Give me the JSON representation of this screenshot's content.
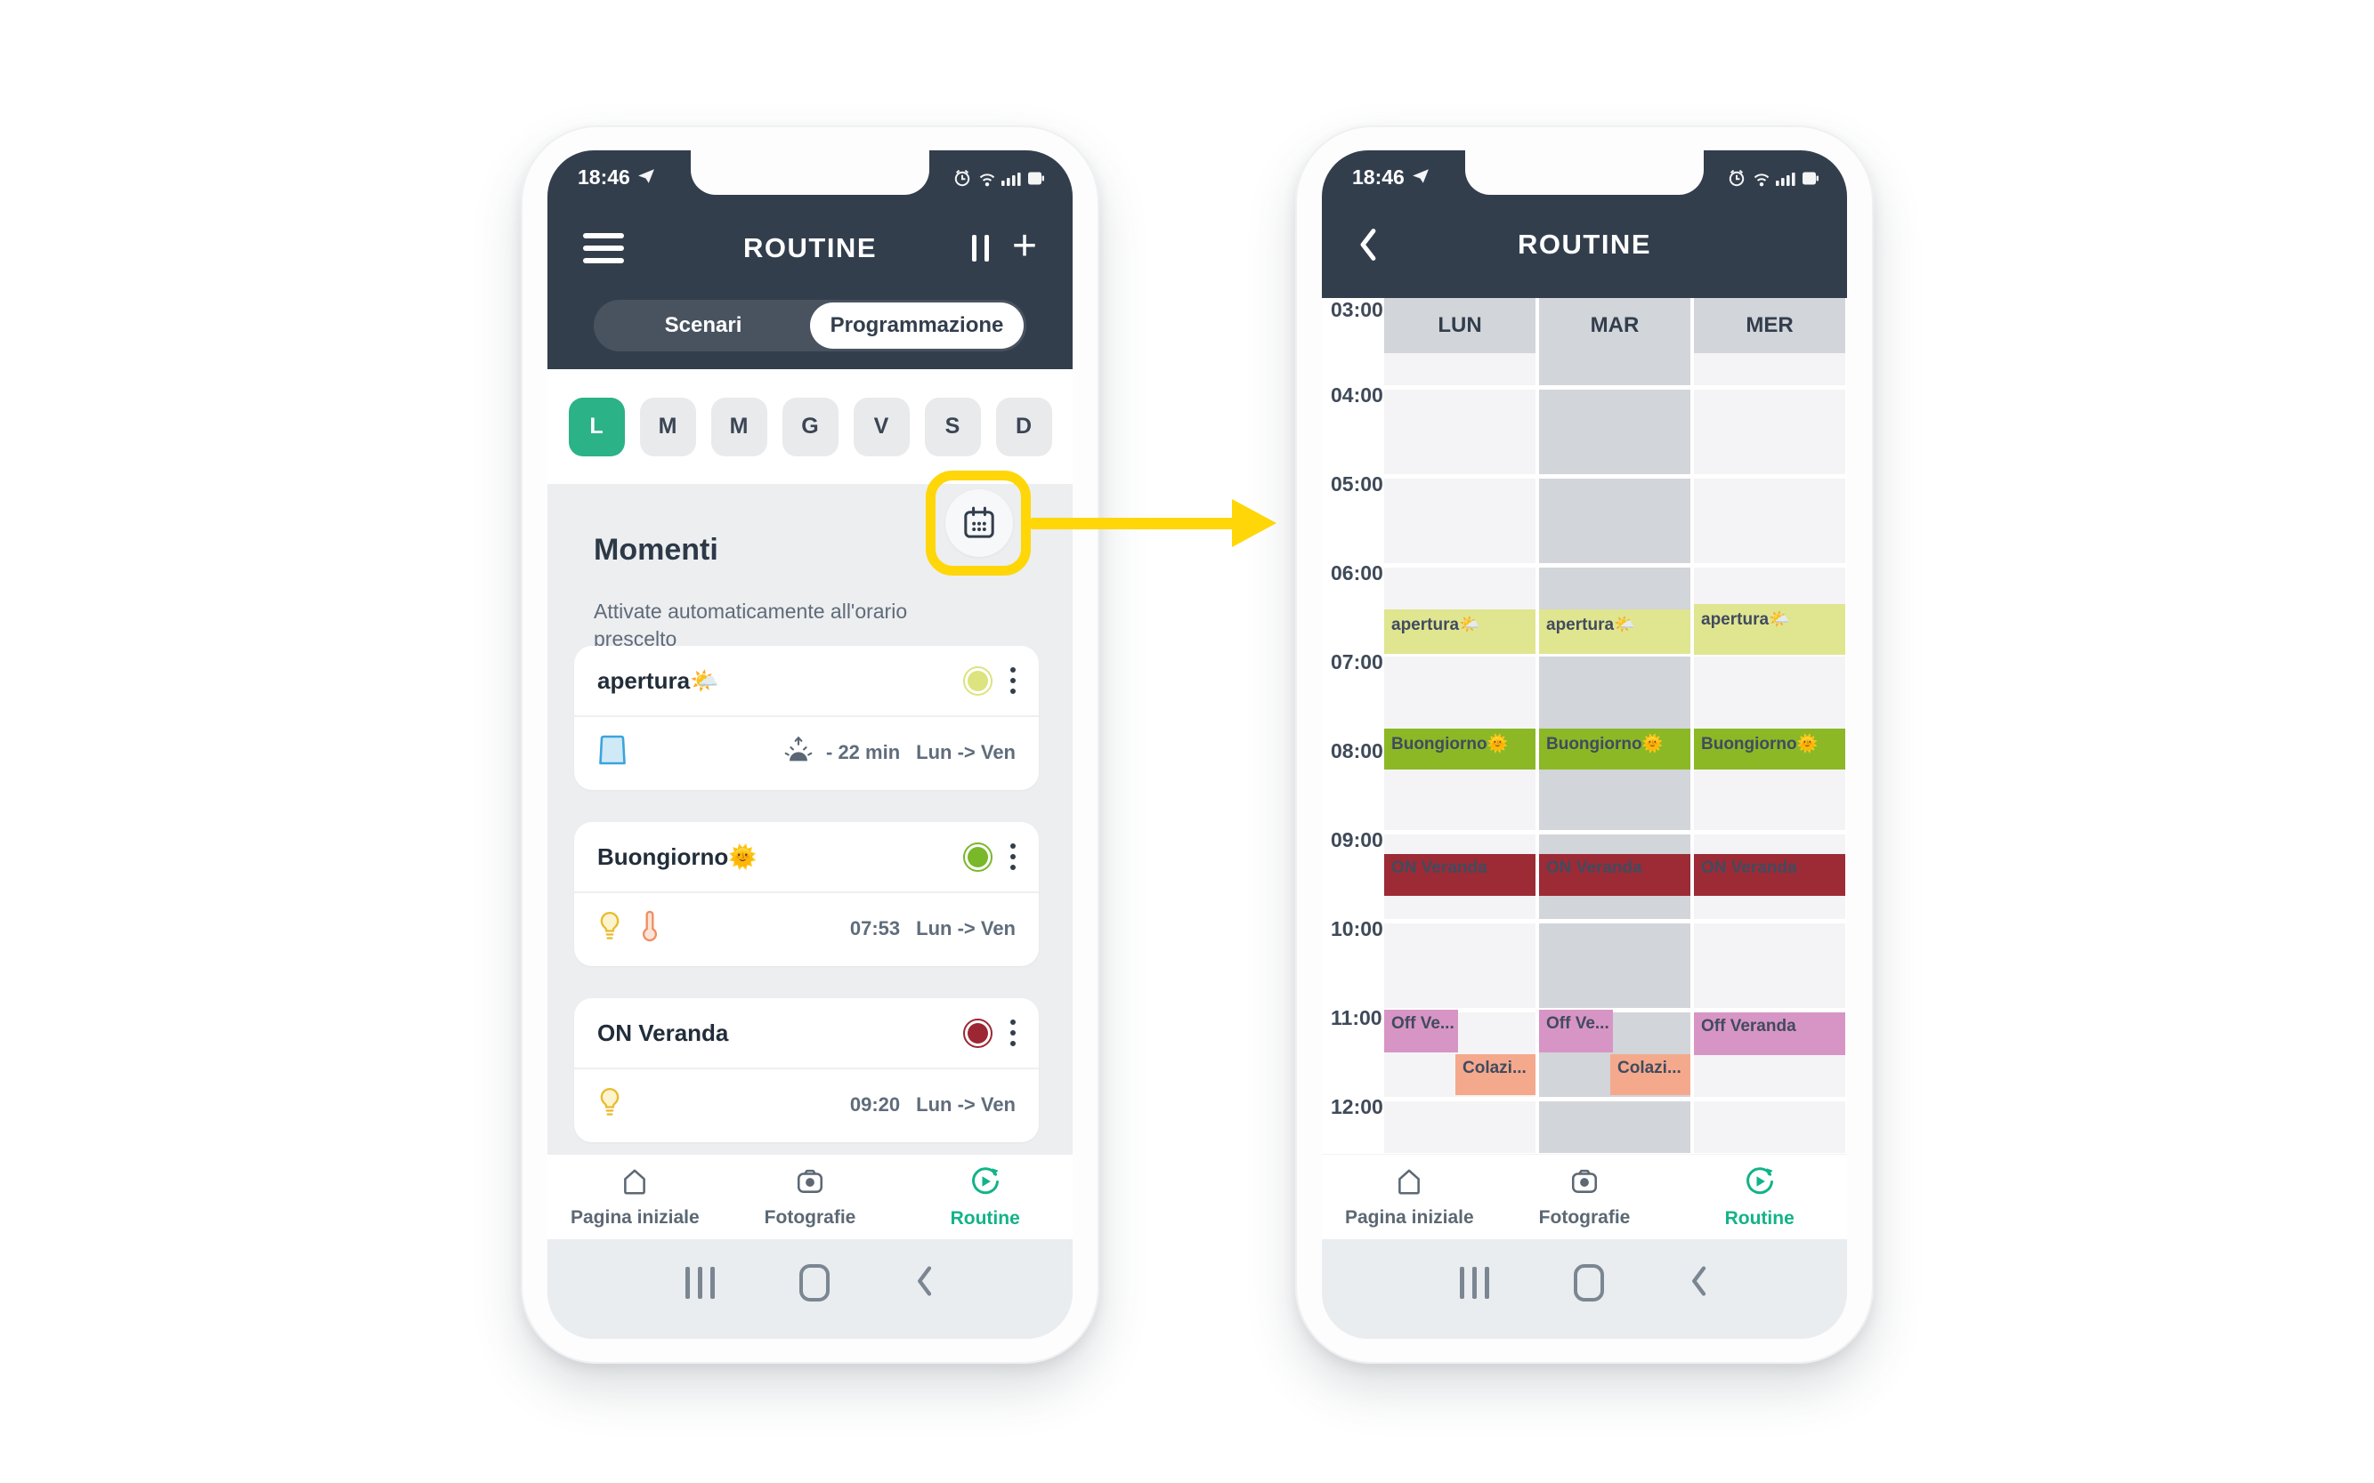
{
  "status": {
    "time": "18:46"
  },
  "left_phone": {
    "title": "ROUTINE",
    "tabs": [
      {
        "label": "Scenari",
        "active": false
      },
      {
        "label": "Programmazione",
        "active": true
      }
    ],
    "days": [
      "L",
      "M",
      "M",
      "G",
      "V",
      "S",
      "D"
    ],
    "active_day_index": 0,
    "section": {
      "title": "Momenti",
      "subtitle": "Attivate automaticamente all'orario prescelto"
    },
    "cards": [
      {
        "name": "apertura🌤️",
        "status_color": "#dce37f",
        "icons": [
          "window"
        ],
        "sunrise_icon": true,
        "schedule": "- 22 min",
        "range": "Lun -> Ven"
      },
      {
        "name": "Buongiorno🌞",
        "status_color": "#79b829",
        "icons": [
          "bulb",
          "thermometer"
        ],
        "sunrise_icon": false,
        "schedule": "07:53",
        "range": "Lun -> Ven"
      },
      {
        "name": "ON Veranda",
        "status_color": "#9c2733",
        "icons": [
          "bulb"
        ],
        "sunrise_icon": false,
        "schedule": "09:20",
        "range": "Lun -> Ven"
      }
    ]
  },
  "right_phone": {
    "title": "ROUTINE",
    "calendar": {
      "hours": [
        "03:00",
        "04:00",
        "05:00",
        "06:00",
        "07:00",
        "08:00",
        "09:00",
        "10:00",
        "11:00",
        "12:00"
      ],
      "columns": [
        "LUN",
        "MAR",
        "MER"
      ],
      "events": [
        {
          "day": 0,
          "label": "apertura🌤️",
          "type": "apertura",
          "start": 6.5,
          "end": 7.0,
          "lane": "full"
        },
        {
          "day": 1,
          "label": "apertura🌤️",
          "type": "apertura",
          "start": 6.5,
          "end": 7.0,
          "lane": "full"
        },
        {
          "day": 2,
          "label": "apertura🌤️",
          "type": "apertura",
          "start": 6.44,
          "end": 7.01,
          "lane": "full"
        },
        {
          "day": 0,
          "label": "Buongiorno🌞",
          "type": "buongiorno",
          "start": 7.84,
          "end": 8.3,
          "lane": "full"
        },
        {
          "day": 1,
          "label": "Buongiorno🌞",
          "type": "buongiorno",
          "start": 7.84,
          "end": 8.3,
          "lane": "full"
        },
        {
          "day": 2,
          "label": "Buongiorno🌞",
          "type": "buongiorno",
          "start": 7.84,
          "end": 8.3,
          "lane": "full"
        },
        {
          "day": 0,
          "label": "ON Veranda",
          "type": "veranda_on",
          "start": 9.25,
          "end": 9.72,
          "lane": "full"
        },
        {
          "day": 1,
          "label": "ON Veranda",
          "type": "veranda_on",
          "start": 9.25,
          "end": 9.72,
          "lane": "full"
        },
        {
          "day": 2,
          "label": "ON Veranda",
          "type": "veranda_on",
          "start": 9.25,
          "end": 9.72,
          "lane": "full"
        },
        {
          "day": 0,
          "label": "Off Ve...",
          "type": "veranda_off",
          "start": 11.0,
          "end": 11.48,
          "lane": "left"
        },
        {
          "day": 1,
          "label": "Off Ve...",
          "type": "veranda_off",
          "start": 11.0,
          "end": 11.48,
          "lane": "left"
        },
        {
          "day": 2,
          "label": "Off Veranda",
          "type": "veranda_off",
          "start": 11.03,
          "end": 11.51,
          "lane": "full"
        },
        {
          "day": 0,
          "label": "Colazi...",
          "type": "colazione",
          "start": 11.5,
          "end": 11.96,
          "lane": "right"
        },
        {
          "day": 1,
          "label": "Colazi...",
          "type": "colazione",
          "start": 11.5,
          "end": 11.96,
          "lane": "right"
        }
      ]
    }
  },
  "bottom_nav": [
    {
      "label": "Pagina iniziale",
      "icon": "home",
      "active": false
    },
    {
      "label": "Fotografie",
      "icon": "camera",
      "active": false
    },
    {
      "label": "Routine",
      "icon": "routine",
      "active": true
    }
  ],
  "android_nav": {
    "recents": "recents",
    "home": "home",
    "back": "back"
  },
  "colors": {
    "header_bg": "#333e4d",
    "active_day": "#2bb286",
    "nav_active": "#12b388",
    "highlight_yellow": "#ffd608",
    "cell_light": "#f4f4f6",
    "cell_dark": "#d2d5d9",
    "events": {
      "apertura": "#e0e590",
      "buongiorno": "#8cb826",
      "veranda_on": "#9c2b36",
      "veranda_off": "#d795c5",
      "colazione": "#f4a98d"
    }
  }
}
